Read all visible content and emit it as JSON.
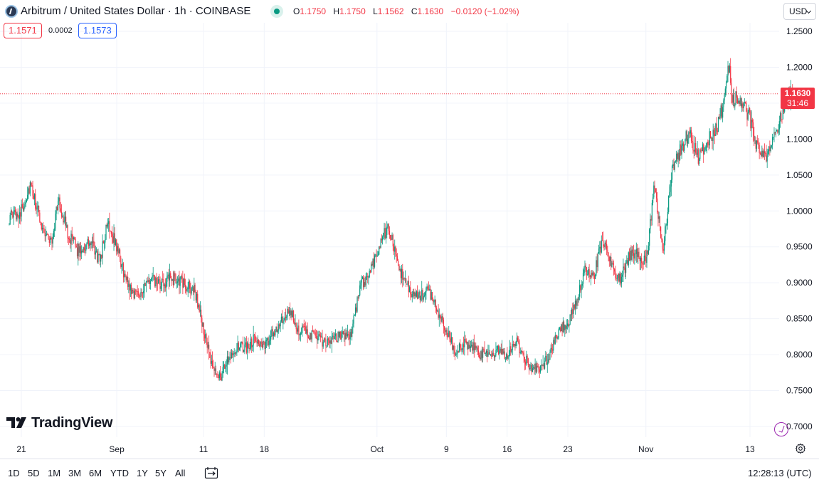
{
  "header": {
    "symbol_title": "Arbitrum / United States Dollar · 1h · COINBASE",
    "ohlc": {
      "o_key": "O",
      "o_val": "1.1750",
      "h_key": "H",
      "h_val": "1.1750",
      "l_key": "L",
      "l_val": "1.1562",
      "c_key": "C",
      "c_val": "1.1630",
      "change": "−0.0120 (−1.02%)"
    },
    "bid": "1.1571",
    "spread": "0.0002",
    "ask": "1.1573",
    "currency": "USD"
  },
  "price_tag": {
    "value": "1.1630",
    "countdown": "31:46"
  },
  "logo_text": "TradingView",
  "bottom_bar": {
    "ranges": [
      "1D",
      "5D",
      "1M",
      "3M",
      "6M",
      "YTD",
      "1Y",
      "5Y",
      "All"
    ],
    "clock": "12:28:13 (UTC)"
  },
  "colors": {
    "up": "#089981",
    "down": "#f23645",
    "grid": "#f0f3fa",
    "price_line": "#f23645"
  },
  "icons": {
    "symbol": "arbitrum-logo-icon",
    "market_status": "market-open-dot-icon",
    "compare": "compare-date-range-icon",
    "settings": "gear-icon",
    "alert": "alert-clock-icon"
  },
  "chart_data": {
    "type": "candlestick",
    "title": "Arbitrum / United States Dollar · 1h · COINBASE",
    "xlabel": "",
    "ylabel": "",
    "ylim": [
      0.69,
      1.26
    ],
    "y_ticks": [
      "1.2500",
      "1.2000",
      "1.1500",
      "1.1000",
      "1.0500",
      "1.0000",
      "0.9500",
      "0.9000",
      "0.8500",
      "0.8000",
      "0.7500",
      "0.7000"
    ],
    "x_ticks": [
      {
        "label": "21",
        "day": 0
      },
      {
        "label": "Sep",
        "day": 11
      },
      {
        "label": "11",
        "day": 21
      },
      {
        "label": "18",
        "day": 28
      },
      {
        "label": "Oct",
        "day": 41
      },
      {
        "label": "9",
        "day": 49
      },
      {
        "label": "16",
        "day": 56
      },
      {
        "label": "23",
        "day": 63
      },
      {
        "label": "Nov",
        "day": 72
      },
      {
        "label": "13",
        "day": 84
      }
    ],
    "x_range_days": [
      -1.4,
      89
    ],
    "current_price": 1.163,
    "grid": true,
    "path": [
      [
        -1.4,
        0.99
      ],
      [
        0,
        1.0
      ],
      [
        1.0,
        1.035
      ],
      [
        2.5,
        0.975
      ],
      [
        3.5,
        0.955
      ],
      [
        4.2,
        1.015
      ],
      [
        5.5,
        0.965
      ],
      [
        6.5,
        0.945
      ],
      [
        8,
        0.955
      ],
      [
        9,
        0.93
      ],
      [
        10,
        0.985
      ],
      [
        11,
        0.95
      ],
      [
        12,
        0.905
      ],
      [
        13,
        0.885
      ],
      [
        14,
        0.89
      ],
      [
        15,
        0.905
      ],
      [
        16,
        0.895
      ],
      [
        17,
        0.905
      ],
      [
        18,
        0.905
      ],
      [
        19,
        0.895
      ],
      [
        20,
        0.89
      ],
      [
        21,
        0.835
      ],
      [
        22,
        0.78
      ],
      [
        23,
        0.77
      ],
      [
        24,
        0.8
      ],
      [
        25,
        0.81
      ],
      [
        26,
        0.81
      ],
      [
        27,
        0.825
      ],
      [
        28,
        0.81
      ],
      [
        29,
        0.83
      ],
      [
        30,
        0.845
      ],
      [
        31,
        0.86
      ],
      [
        32,
        0.835
      ],
      [
        33,
        0.83
      ],
      [
        34,
        0.825
      ],
      [
        35,
        0.815
      ],
      [
        36,
        0.82
      ],
      [
        37,
        0.83
      ],
      [
        38,
        0.825
      ],
      [
        39,
        0.895
      ],
      [
        40,
        0.91
      ],
      [
        41.5,
        0.96
      ],
      [
        42.3,
        0.98
      ],
      [
        43,
        0.945
      ],
      [
        44,
        0.905
      ],
      [
        45,
        0.885
      ],
      [
        46,
        0.88
      ],
      [
        47,
        0.89
      ],
      [
        48,
        0.86
      ],
      [
        49,
        0.835
      ],
      [
        50,
        0.805
      ],
      [
        51,
        0.815
      ],
      [
        52,
        0.81
      ],
      [
        53,
        0.8
      ],
      [
        54,
        0.8
      ],
      [
        55,
        0.805
      ],
      [
        56,
        0.8
      ],
      [
        57,
        0.82
      ],
      [
        58,
        0.795
      ],
      [
        59,
        0.78
      ],
      [
        60,
        0.78
      ],
      [
        61,
        0.805
      ],
      [
        62,
        0.835
      ],
      [
        63,
        0.845
      ],
      [
        64,
        0.87
      ],
      [
        65,
        0.92
      ],
      [
        66,
        0.91
      ],
      [
        67,
        0.96
      ],
      [
        68,
        0.925
      ],
      [
        69,
        0.905
      ],
      [
        70,
        0.935
      ],
      [
        71,
        0.945
      ],
      [
        72,
        0.925
      ],
      [
        73,
        1.035
      ],
      [
        74,
        0.945
      ],
      [
        75,
        1.06
      ],
      [
        76,
        1.085
      ],
      [
        77,
        1.11
      ],
      [
        78,
        1.075
      ],
      [
        79,
        1.095
      ],
      [
        80,
        1.11
      ],
      [
        81,
        1.15
      ],
      [
        81.5,
        1.21
      ],
      [
        82,
        1.155
      ],
      [
        83,
        1.155
      ],
      [
        84,
        1.13
      ],
      [
        84.5,
        1.1
      ],
      [
        85,
        1.08
      ],
      [
        86,
        1.075
      ],
      [
        87,
        1.11
      ],
      [
        88,
        1.15
      ],
      [
        89,
        1.163
      ]
    ]
  }
}
